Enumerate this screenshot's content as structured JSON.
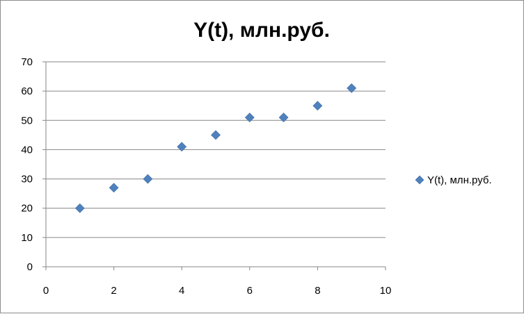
{
  "chart_data": {
    "type": "scatter",
    "title": "Y(t), млн.руб.",
    "xlabel": "",
    "ylabel": "",
    "xlim": [
      0,
      10
    ],
    "ylim": [
      0,
      70
    ],
    "xticks": [
      0,
      2,
      4,
      6,
      8,
      10
    ],
    "yticks": [
      0,
      10,
      20,
      30,
      40,
      50,
      60,
      70
    ],
    "grid": "horizontal",
    "legend": "right",
    "series": [
      {
        "name": "Y(t), млн.руб.",
        "color": "#4f81bd",
        "marker": "diamond",
        "x": [
          1,
          2,
          3,
          4,
          5,
          6,
          7,
          8,
          9
        ],
        "y": [
          20,
          27,
          30,
          41,
          45,
          51,
          51,
          55,
          61
        ]
      }
    ]
  }
}
